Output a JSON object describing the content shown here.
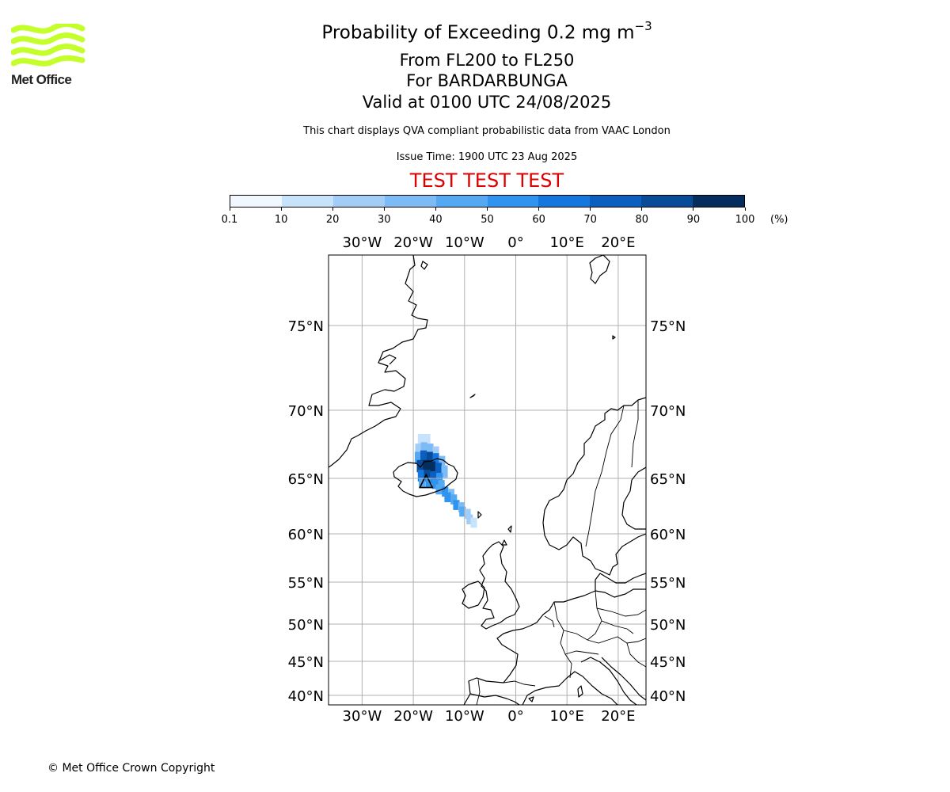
{
  "header": {
    "title_prefix": "Probability of Exceeding 0.2 mg m",
    "title_exponent": "−3",
    "levels": "From FL200 to FL250",
    "volcano": "For BARDARBUNGA",
    "valid": "Valid at 0100 UTC 24/08/2025",
    "description": "This chart displays QVA compliant probabilistic data from VAAC London",
    "issue_time": "Issue Time: 1900 UTC 23 Aug 2025",
    "test_banner": "TEST TEST TEST"
  },
  "logo": {
    "text": "Met Office",
    "color": "#c4ff2b"
  },
  "colorbar": {
    "tick_labels": [
      "0.1",
      "10",
      "20",
      "30",
      "40",
      "50",
      "60",
      "70",
      "80",
      "90",
      "100"
    ],
    "unit": "(%)",
    "colors": [
      "#f0f7ff",
      "#c7e2fb",
      "#a1cdf7",
      "#7cbbf5",
      "#55a8f2",
      "#2f94ef",
      "#1477dd",
      "#0b5fbf",
      "#084b99",
      "#052e5e"
    ]
  },
  "map": {
    "lon_labels": [
      "30°W",
      "20°W",
      "10°W",
      "0°",
      "10°E",
      "20°E"
    ],
    "lat_labels": [
      "75°N",
      "70°N",
      "65°N",
      "60°N",
      "55°N",
      "50°N",
      "45°N",
      "40°N"
    ],
    "plume": {
      "cells": [
        {
          "lon": -18.5,
          "lat": 67.8,
          "level": 1
        },
        {
          "lon": -17.3,
          "lat": 67.8,
          "level": 1
        },
        {
          "lon": -19.0,
          "lat": 67.1,
          "level": 2
        },
        {
          "lon": -17.9,
          "lat": 67.2,
          "level": 3
        },
        {
          "lon": -16.7,
          "lat": 67.1,
          "level": 3
        },
        {
          "lon": -15.6,
          "lat": 66.9,
          "level": 2
        },
        {
          "lon": -19.1,
          "lat": 66.5,
          "level": 4
        },
        {
          "lon": -18.0,
          "lat": 66.6,
          "level": 7
        },
        {
          "lon": -16.8,
          "lat": 66.5,
          "level": 8
        },
        {
          "lon": -15.6,
          "lat": 66.4,
          "level": 6
        },
        {
          "lon": -14.4,
          "lat": 66.2,
          "level": 3
        },
        {
          "lon": -18.7,
          "lat": 65.9,
          "level": 8
        },
        {
          "lon": -17.5,
          "lat": 65.9,
          "level": 9
        },
        {
          "lon": -16.3,
          "lat": 65.8,
          "level": 9
        },
        {
          "lon": -15.1,
          "lat": 65.7,
          "level": 7
        },
        {
          "lon": -13.9,
          "lat": 65.5,
          "level": 3
        },
        {
          "lon": -18.5,
          "lat": 65.2,
          "level": 6
        },
        {
          "lon": -17.3,
          "lat": 65.2,
          "level": 8
        },
        {
          "lon": -16.1,
          "lat": 65.1,
          "level": 7
        },
        {
          "lon": -14.9,
          "lat": 65.0,
          "level": 5
        },
        {
          "lon": -18.3,
          "lat": 64.6,
          "level": 4
        },
        {
          "lon": -17.0,
          "lat": 64.6,
          "level": 5
        },
        {
          "lon": -15.7,
          "lat": 64.5,
          "level": 5
        },
        {
          "lon": -14.5,
          "lat": 64.4,
          "level": 4
        },
        {
          "lon": -15.0,
          "lat": 64.0,
          "level": 4
        },
        {
          "lon": -13.8,
          "lat": 63.8,
          "level": 5
        },
        {
          "lon": -12.6,
          "lat": 63.6,
          "level": 3
        },
        {
          "lon": -13.3,
          "lat": 63.3,
          "level": 5
        },
        {
          "lon": -12.1,
          "lat": 63.1,
          "level": 4
        },
        {
          "lon": -11.6,
          "lat": 62.6,
          "level": 5
        },
        {
          "lon": -10.6,
          "lat": 62.4,
          "level": 3
        },
        {
          "lon": -10.4,
          "lat": 62.0,
          "level": 4
        },
        {
          "lon": -9.4,
          "lat": 61.8,
          "level": 2
        },
        {
          "lon": -9.0,
          "lat": 61.3,
          "level": 2
        },
        {
          "lon": -8.2,
          "lat": 61.0,
          "level": 1
        }
      ],
      "source": {
        "lon": -17.5,
        "lat": 64.6
      }
    }
  },
  "footer": {
    "copyright": "© Met Office Crown Copyright"
  }
}
